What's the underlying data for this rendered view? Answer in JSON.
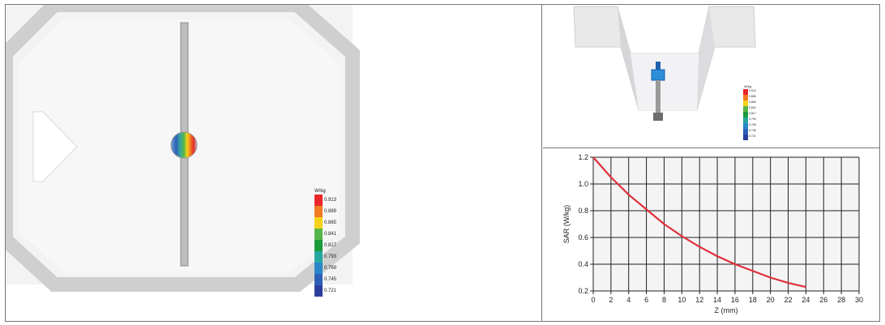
{
  "left_view": {
    "colorbar": {
      "unit": "W/kg",
      "labels": [
        "0.913",
        "0.889",
        "0.865",
        "0.841",
        "0.817",
        "0.793",
        "0.769",
        "0.745",
        "0.721"
      ],
      "colors": [
        "#e8262b",
        "#f27a22",
        "#f6d21a",
        "#56b648",
        "#1c9a3c",
        "#25a7a0",
        "#2a86c9",
        "#2c5fb8",
        "#2a3f9c"
      ]
    }
  },
  "right_view": {
    "colorbar": {
      "unit": "W/kg",
      "labels": [
        "0.913",
        "0.889",
        "0.865",
        "0.841",
        "0.817",
        "0.793",
        "0.769",
        "0.745",
        "0.721"
      ],
      "colors": [
        "#e8262b",
        "#f27a22",
        "#f6d21a",
        "#56b648",
        "#1c9a3c",
        "#25a7a0",
        "#2a86c9",
        "#2c5fb8",
        "#2a3f9c"
      ]
    }
  },
  "chart_data": {
    "type": "line",
    "xlabel": "Z (mm)",
    "ylabel": "SAR (W/kg)",
    "xlim": [
      0,
      30
    ],
    "ylim": [
      0.2,
      1.2
    ],
    "xticks": [
      0,
      2,
      4,
      6,
      8,
      10,
      12,
      14,
      16,
      18,
      20,
      22,
      24,
      26,
      28,
      30
    ],
    "yticks": [
      0.2,
      0.4,
      0.6,
      0.8,
      1.0,
      1.2
    ],
    "ytick_labels": [
      "0.2",
      "0.4",
      "0.6",
      "0.8",
      "1.0",
      "1.2"
    ],
    "grid": true,
    "line_color": "#e0303a",
    "series": [
      {
        "x": [
          0,
          2,
          4,
          6,
          8,
          10,
          12,
          14,
          16,
          18,
          20,
          22,
          24
        ],
        "y": [
          1.2,
          1.05,
          0.92,
          0.81,
          0.7,
          0.61,
          0.53,
          0.46,
          0.4,
          0.35,
          0.3,
          0.26,
          0.23
        ]
      }
    ]
  }
}
